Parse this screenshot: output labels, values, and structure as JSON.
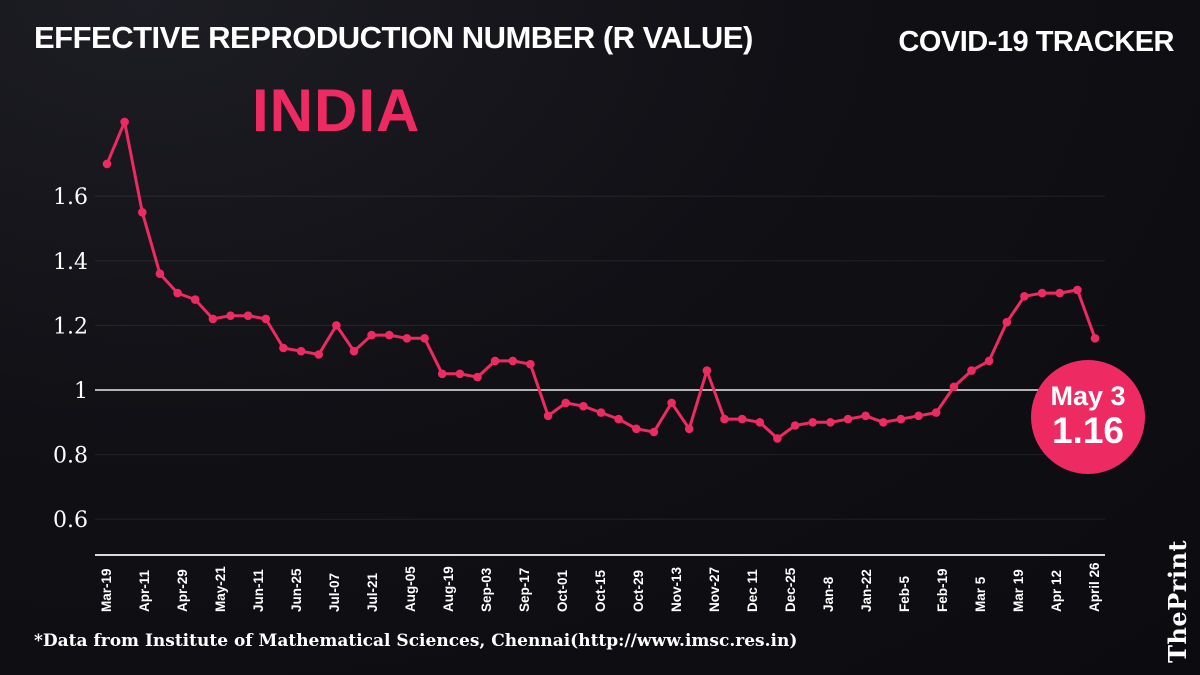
{
  "header": {
    "title": "EFFECTIVE REPRODUCTION NUMBER (R VALUE)",
    "tracker_label": "COVID-19 TRACKER",
    "subtitle": "INDIA"
  },
  "badge": {
    "date": "May 3",
    "value": "1.16"
  },
  "footer": {
    "source": "*Data from Institute of Mathematical Sciences, Chennai(http://www.imsc.res.in)",
    "brand": "ThePrint"
  },
  "colors": {
    "background": "#101015",
    "accent_pink": "#ee2a62",
    "text": "#ffffff",
    "baseline_line": "#e8e8e8",
    "grid_faint": "rgba(255,255,255,0.08)"
  },
  "chart_data": {
    "type": "line",
    "title": "Effective Reproduction Number (R Value) - India",
    "xlabel": "",
    "ylabel": "R value",
    "ylim": [
      0.55,
      1.9
    ],
    "baseline": 1,
    "grid": "baseline-only",
    "legend": "none",
    "line_color": "#ee2a62",
    "marker": "circle",
    "y_ticks": [
      1.6,
      1.4,
      1.2,
      1,
      0.8,
      0.6
    ],
    "x_tick_labels": [
      "Mar-19",
      "Apr-11",
      "Apr-29",
      "May-21",
      "Jun-11",
      "Jun-25",
      "Jul-07",
      "Jul-21",
      "Aug-05",
      "Aug-19",
      "Sep-03",
      "Sep-17",
      "Oct-01",
      "Oct-15",
      "Oct-29",
      "Nov-13",
      "Nov-27",
      "Dec 11",
      "Dec-25",
      "Jan-8",
      "Jan-22",
      "Feb-5",
      "Feb-19",
      "Mar 5",
      "Mar 19",
      "Apr 12",
      "April 26"
    ],
    "values": [
      1.7,
      1.83,
      1.55,
      1.36,
      1.3,
      1.28,
      1.22,
      1.23,
      1.23,
      1.22,
      1.13,
      1.12,
      1.11,
      1.2,
      1.12,
      1.17,
      1.17,
      1.16,
      1.16,
      1.05,
      1.05,
      1.04,
      1.09,
      1.09,
      1.08,
      0.92,
      0.96,
      0.95,
      0.93,
      0.91,
      0.88,
      0.87,
      0.96,
      0.88,
      1.06,
      0.91,
      0.91,
      0.9,
      0.85,
      0.89,
      0.9,
      0.9,
      0.91,
      0.92,
      0.9,
      0.91,
      0.92,
      0.93,
      1.01,
      1.06,
      1.09,
      1.21,
      1.29,
      1.3,
      1.3,
      1.31,
      1.16
    ],
    "latest": {
      "date": "May 3",
      "value": 1.16
    }
  }
}
